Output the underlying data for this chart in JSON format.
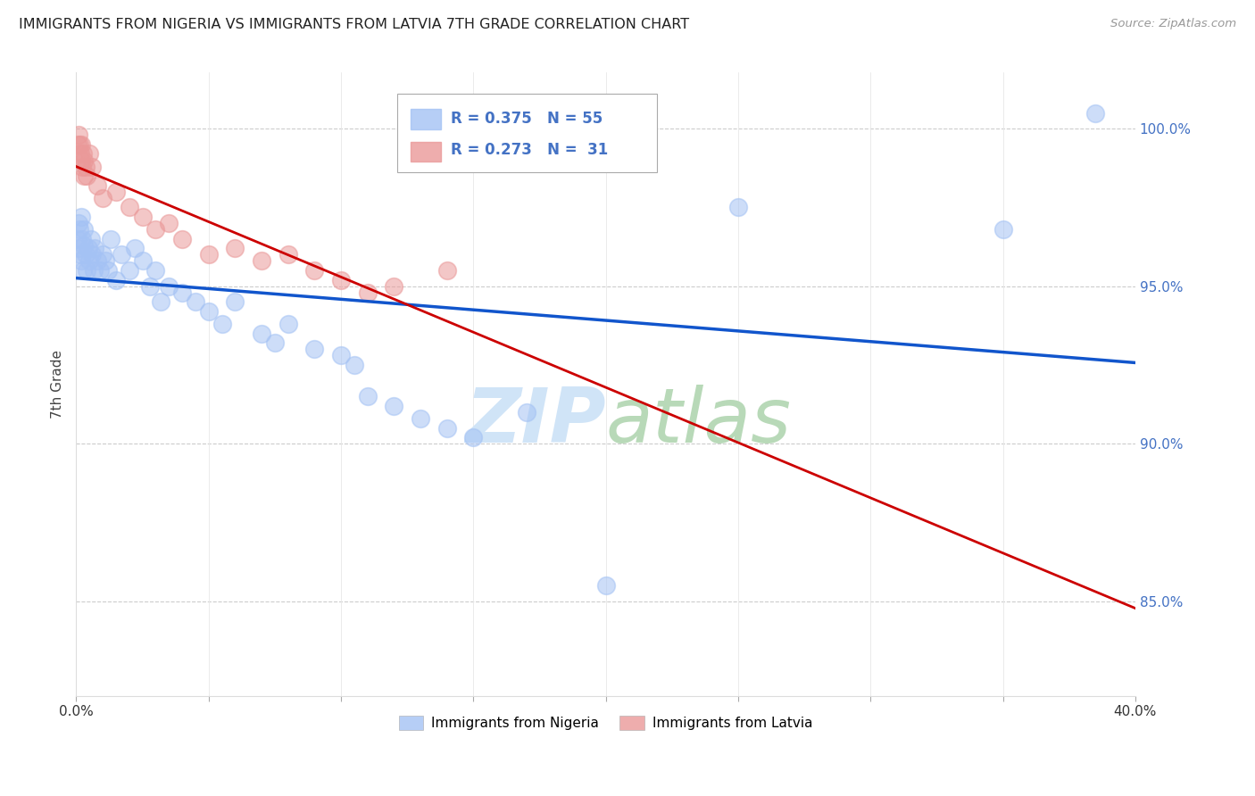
{
  "title": "IMMIGRANTS FROM NIGERIA VS IMMIGRANTS FROM LATVIA 7TH GRADE CORRELATION CHART",
  "source": "Source: ZipAtlas.com",
  "ylabel": "7th Grade",
  "legend1_label": "Immigrants from Nigeria",
  "legend2_label": "Immigrants from Latvia",
  "r_nigeria": 0.375,
  "n_nigeria": 55,
  "r_latvia": 0.273,
  "n_latvia": 31,
  "nigeria_color": "#a4c2f4",
  "latvia_color": "#ea9999",
  "nigeria_line_color": "#1155cc",
  "latvia_line_color": "#cc0000",
  "background_color": "#ffffff",
  "grid_color": "#cccccc",
  "watermark_zip": "ZIP",
  "watermark_atlas": "atlas",
  "watermark_color_zip": "#c9daf8",
  "watermark_color_atlas": "#b6d7a8",
  "xlim": [
    0.0,
    40.0
  ],
  "ylim": [
    82.0,
    101.8
  ],
  "yticks": [
    85.0,
    90.0,
    95.0,
    100.0
  ],
  "xticks": [
    0.0,
    5.0,
    10.0,
    15.0,
    20.0,
    25.0,
    30.0,
    35.0,
    40.0
  ],
  "nigeria_x": [
    0.05,
    0.08,
    0.1,
    0.12,
    0.15,
    0.18,
    0.2,
    0.22,
    0.25,
    0.28,
    0.3,
    0.35,
    0.4,
    0.45,
    0.5,
    0.55,
    0.6,
    0.65,
    0.7,
    0.8,
    0.9,
    1.0,
    1.1,
    1.2,
    1.3,
    1.5,
    1.7,
    2.0,
    2.2,
    2.5,
    2.8,
    3.0,
    3.2,
    3.5,
    4.0,
    4.5,
    5.0,
    5.5,
    6.0,
    7.0,
    7.5,
    8.0,
    9.0,
    10.0,
    10.5,
    11.0,
    12.0,
    13.0,
    14.0,
    15.0,
    17.0,
    20.0,
    25.0,
    35.0,
    38.5
  ],
  "nigeria_y": [
    96.5,
    96.2,
    97.0,
    96.8,
    96.0,
    95.8,
    97.2,
    96.5,
    95.5,
    96.3,
    96.8,
    96.0,
    95.5,
    96.2,
    95.8,
    96.5,
    96.0,
    95.5,
    96.2,
    95.8,
    95.5,
    96.0,
    95.8,
    95.5,
    96.5,
    95.2,
    96.0,
    95.5,
    96.2,
    95.8,
    95.0,
    95.5,
    94.5,
    95.0,
    94.8,
    94.5,
    94.2,
    93.8,
    94.5,
    93.5,
    93.2,
    93.8,
    93.0,
    92.8,
    92.5,
    91.5,
    91.2,
    90.8,
    90.5,
    90.2,
    91.0,
    85.5,
    97.5,
    96.8,
    100.5
  ],
  "latvia_x": [
    0.05,
    0.1,
    0.12,
    0.15,
    0.18,
    0.2,
    0.22,
    0.25,
    0.28,
    0.3,
    0.35,
    0.4,
    0.5,
    0.6,
    0.8,
    1.0,
    1.5,
    2.0,
    2.5,
    3.0,
    3.5,
    4.0,
    5.0,
    6.0,
    7.0,
    8.0,
    9.0,
    10.0,
    11.0,
    12.0,
    14.0
  ],
  "latvia_y": [
    99.5,
    99.8,
    99.5,
    99.2,
    99.0,
    99.5,
    98.8,
    99.2,
    98.5,
    99.0,
    98.8,
    98.5,
    99.2,
    98.8,
    98.2,
    97.8,
    98.0,
    97.5,
    97.2,
    96.8,
    97.0,
    96.5,
    96.0,
    96.2,
    95.8,
    96.0,
    95.5,
    95.2,
    94.8,
    95.0,
    95.5
  ]
}
